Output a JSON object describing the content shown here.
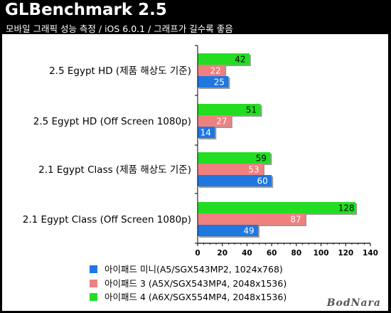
{
  "header": {
    "title": "GLBenchmark 2.5",
    "subtitle": "모바일 그래픽 성능 측정 / iOS 6.0.1 / 그래프가 길수록 좋음"
  },
  "watermark": "BodNara",
  "chart_data": {
    "type": "bar",
    "orientation": "horizontal",
    "categories": [
      "2.5 Egypt HD (제품 해상도 기준)",
      "2.5 Egypt HD (Off Screen 1080p)",
      "2.1 Egypt Class (제품 해상도 기준)",
      "2.1 Egypt Class (Off Screen 1080p)"
    ],
    "series": [
      {
        "name": "아이패드 4 (A6X/SGX554MP4, 2048x1536)",
        "color": "#22dd22",
        "values": [
          42,
          51,
          59,
          128
        ]
      },
      {
        "name": "아이패드 3 (A5X/SGX543MP4, 2048x1536)",
        "color": "#f08080",
        "values": [
          22,
          27,
          53,
          87
        ]
      },
      {
        "name": "아이패드 미니(A5/SGX543MP2, 1024x768)",
        "color": "#1f77e0",
        "values": [
          25,
          14,
          60,
          49
        ]
      }
    ],
    "xlim": [
      0,
      140
    ],
    "xticks": [
      0,
      20,
      40,
      60,
      80,
      100,
      120,
      140
    ],
    "grid": false,
    "legend_position": "bottom",
    "legend_order": [
      2,
      1,
      0
    ]
  }
}
